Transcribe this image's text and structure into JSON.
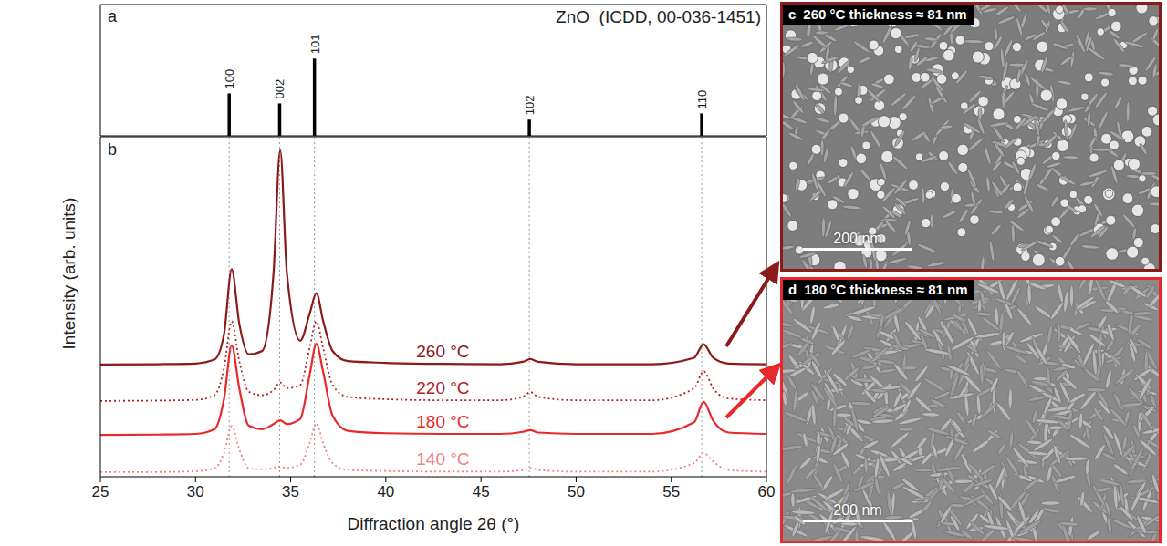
{
  "chart_data": [
    {
      "panel_label": "a",
      "type": "stem",
      "title": "ZnO  (ICDD, 00-036-1451)",
      "x": [
        31.77,
        34.42,
        36.25,
        47.54,
        56.6
      ],
      "values": [
        55,
        42,
        100,
        21,
        29
      ],
      "labels": [
        "100",
        "002",
        "101",
        "102",
        "110"
      ],
      "color": "#000000",
      "xlim": [
        25,
        60
      ],
      "ylim": [
        0,
        170
      ],
      "tick_labels": false
    },
    {
      "panel_label": "b",
      "type": "line",
      "x_label": "Diffraction angle 2θ (°)",
      "y_label": "Intensity (arb. units)",
      "x": [
        25,
        28,
        30,
        31,
        31.5,
        31.9,
        32.3,
        32.8,
        33.5,
        34.1,
        34.45,
        34.8,
        35.5,
        36.0,
        36.35,
        36.7,
        37.2,
        38,
        40,
        43,
        46,
        47.2,
        47.6,
        48.0,
        50,
        54,
        56.2,
        56.7,
        57.2,
        58,
        60
      ],
      "series": [
        {
          "name": "260 °C",
          "color": "#8b1a1a",
          "line_style": "solid",
          "values": [
            33.0,
            33.1,
            33.3,
            34.5,
            42,
            61,
            45,
            36,
            37,
            60,
            96,
            60,
            40,
            48,
            54,
            46,
            37,
            34,
            33.5,
            33.2,
            33.1,
            33.8,
            34.6,
            33.8,
            33.1,
            33.1,
            35,
            39,
            35,
            33.3,
            33.1
          ]
        },
        {
          "name": "220 °C",
          "color": "#b22222",
          "line_style": "dotted",
          "values": [
            22.3,
            22.4,
            22.6,
            24,
            32,
            45.7,
            34,
            25,
            24,
            25.5,
            27.7,
            26,
            27,
            38,
            45.7,
            38,
            27,
            23.5,
            22.8,
            22.5,
            22.5,
            23.5,
            24.9,
            23.5,
            22.5,
            22.5,
            26,
            31,
            26,
            23,
            22.5
          ]
        },
        {
          "name": "180 °C",
          "color": "#e8282a",
          "line_style": "solid",
          "values": [
            12.3,
            12.4,
            12.6,
            14,
            23,
            38.6,
            26,
            15,
            14,
            15.5,
            16.6,
            15.5,
            17,
            30,
            39.1,
            31,
            18,
            13.5,
            12.8,
            12.6,
            12.6,
            13.2,
            13.7,
            13,
            12.6,
            12.6,
            16,
            22,
            16.5,
            13,
            12.6
          ]
        },
        {
          "name": "140 °C",
          "color": "#f08080",
          "line_style": "dotted",
          "values": [
            1.4,
            1.4,
            1.6,
            2.5,
            7,
            14.9,
            8,
            2.5,
            2.2,
            2.6,
            3.0,
            2.6,
            3.5,
            10,
            15.7,
            10,
            4,
            2,
            1.7,
            1.5,
            1.5,
            2.0,
            2.6,
            2.0,
            1.5,
            1.5,
            4,
            7,
            4.5,
            2,
            1.5
          ]
        }
      ],
      "xlim": [
        25,
        60
      ],
      "xticks": [
        25,
        30,
        35,
        40,
        45,
        50,
        55,
        60
      ],
      "ylim": [
        0,
        100
      ],
      "tick_labels": "x"
    }
  ],
  "images": [
    {
      "panel_label": "c",
      "title": "260 °C thickness ≈ 81 nm",
      "scale_bar": "200 nm",
      "color": "#8b1a1a",
      "arrow_from": "260 °C"
    },
    {
      "panel_label": "d",
      "title": "180 °C thickness ≈ 81 nm",
      "scale_bar": "200 nm",
      "color": "#e8282a",
      "arrow_from": "180 °C"
    }
  ]
}
